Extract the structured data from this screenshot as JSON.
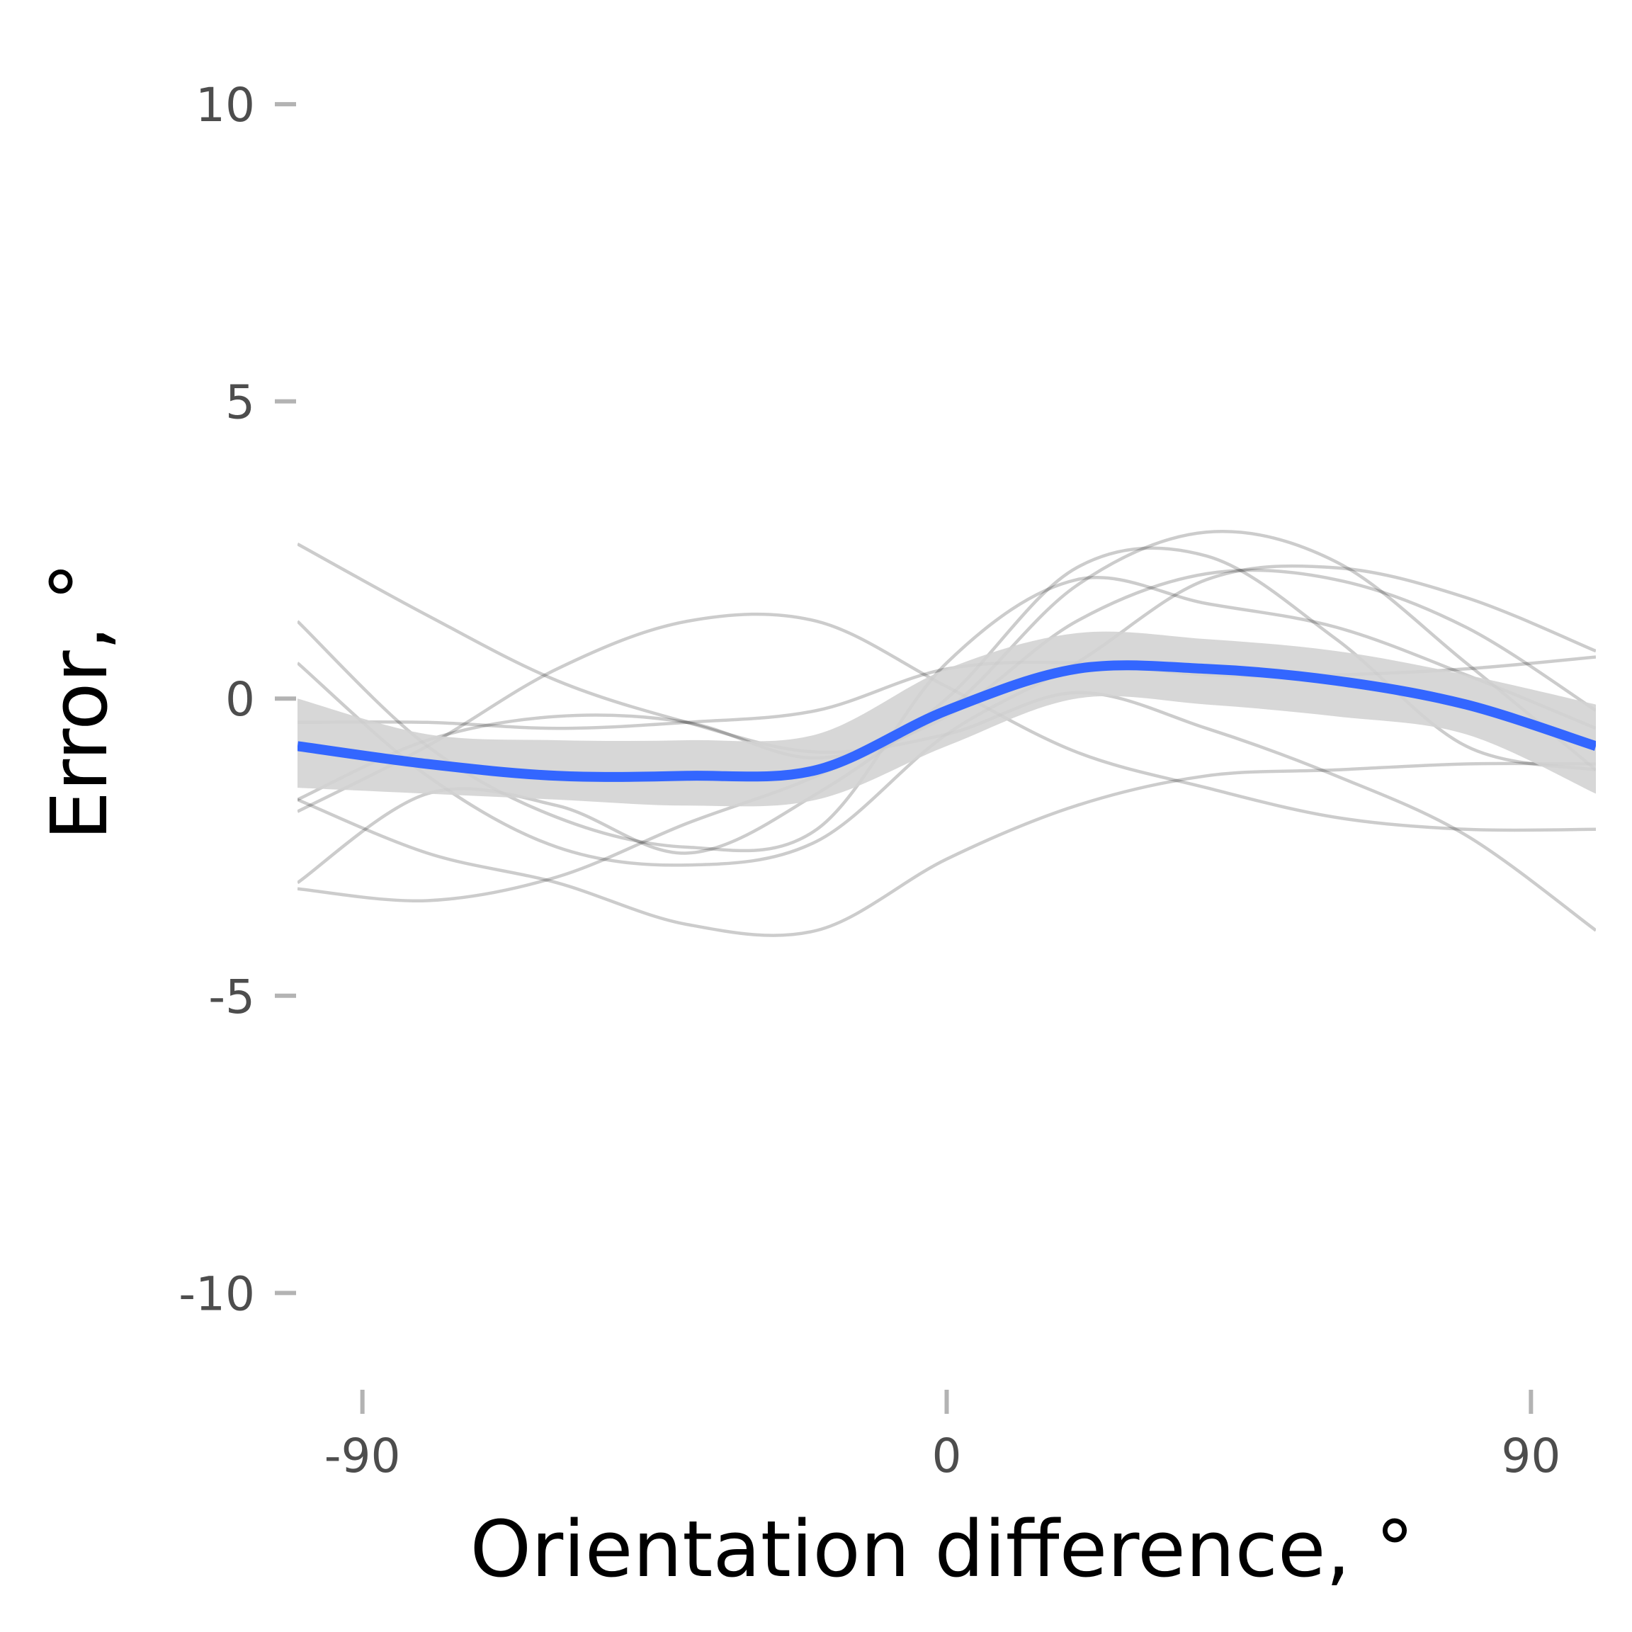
{
  "chart_data": {
    "type": "line",
    "title": "",
    "xlabel": "Orientation difference, °",
    "ylabel": "Error, °",
    "xlim": [
      -100,
      100
    ],
    "ylim": [
      -11.7,
      11.3
    ],
    "x_ticks": [
      -90,
      0,
      90
    ],
    "x_tick_labels": [
      "-90",
      "0",
      "90"
    ],
    "y_ticks": [
      -10,
      -5,
      0,
      5,
      10
    ],
    "y_tick_labels": [
      "-10",
      "-5",
      "0",
      "5",
      "10"
    ],
    "grid": false,
    "legend": "none",
    "colors": {
      "mean_line": "#3366ff",
      "individual_lines": "#000000",
      "ribbon": "#d3d3d3",
      "tick_marks": "#b3b3b3"
    },
    "x": [
      -100,
      -80,
      -60,
      -40,
      -20,
      0,
      20,
      40,
      60,
      80,
      100
    ],
    "ribbon": {
      "lower": [
        -1.5,
        -1.6,
        -1.7,
        -1.8,
        -1.7,
        -0.8,
        0.0,
        -0.1,
        -0.3,
        -0.6,
        -1.6
      ],
      "upper": [
        0.0,
        -0.6,
        -0.7,
        -0.7,
        -0.6,
        0.5,
        1.1,
        1.0,
        0.8,
        0.4,
        -0.1
      ]
    },
    "series": [
      {
        "role": "mean",
        "values": [
          -0.8,
          -1.1,
          -1.3,
          -1.3,
          -1.2,
          -0.2,
          0.5,
          0.5,
          0.3,
          -0.1,
          -0.8
        ]
      },
      {
        "role": "individual",
        "values": [
          2.6,
          1.4,
          0.3,
          -0.4,
          -0.9,
          -0.6,
          0.1,
          -0.5,
          -1.3,
          -2.3,
          -3.9
        ]
      },
      {
        "role": "individual",
        "values": [
          1.3,
          -0.8,
          -2.0,
          -2.5,
          -2.2,
          0.6,
          2.0,
          1.6,
          1.2,
          0.4,
          -0.5
        ]
      },
      {
        "role": "individual",
        "values": [
          0.6,
          -1.3,
          -2.5,
          -2.8,
          -2.4,
          -0.6,
          0.6,
          2.0,
          2.2,
          1.7,
          0.8
        ]
      },
      {
        "role": "individual",
        "values": [
          -0.4,
          -0.4,
          -0.5,
          -0.4,
          -0.2,
          0.5,
          0.6,
          0.4,
          0.4,
          0.5,
          0.7
        ]
      },
      {
        "role": "individual",
        "values": [
          -1.7,
          -0.7,
          -0.3,
          -0.4,
          -1.0,
          -0.3,
          1.3,
          2.1,
          2.0,
          1.2,
          -0.2
        ]
      },
      {
        "role": "individual",
        "values": [
          -1.9,
          -0.8,
          0.5,
          1.3,
          1.3,
          0.2,
          -0.9,
          -1.5,
          -2.0,
          -2.2,
          -2.2
        ]
      },
      {
        "role": "individual",
        "values": [
          -3.2,
          -3.4,
          -3.0,
          -2.1,
          -1.3,
          -0.2,
          1.9,
          2.8,
          2.3,
          0.6,
          -1.2
        ]
      },
      {
        "role": "individual",
        "values": [
          -1.7,
          -2.6,
          -3.1,
          -3.8,
          -3.9,
          -2.7,
          -1.8,
          -1.3,
          -1.2,
          -1.1,
          -1.1
        ]
      },
      {
        "role": "individual",
        "values": [
          -3.1,
          -1.6,
          -1.8,
          -2.6,
          -1.6,
          0.0,
          2.2,
          2.4,
          1.0,
          -0.8,
          -1.2
        ]
      }
    ]
  }
}
